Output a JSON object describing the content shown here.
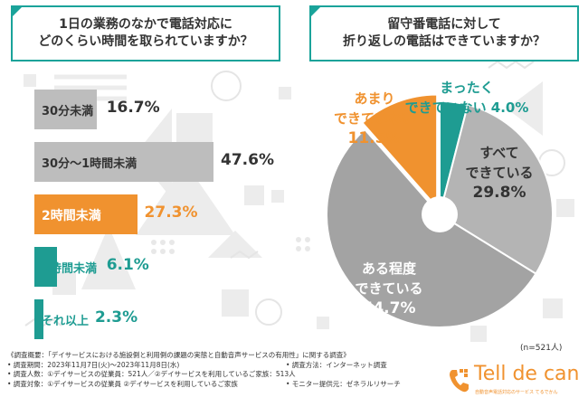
{
  "question1": {
    "line1": "1日の業務のなかで電話対応に",
    "line2": "どのくらい時間を取られていますか？"
  },
  "question2": {
    "line1": "留守番電話に対して",
    "line2": "折り返しの電話はできていますか？"
  },
  "chart_data": [
    {
      "type": "bar",
      "orientation": "horizontal",
      "categories": [
        "30分未満",
        "30分〜1時間未満",
        "2時間未満",
        "3時間未満",
        "それ以上"
      ],
      "values": [
        16.7,
        47.6,
        27.3,
        6.1,
        2.3
      ],
      "value_labels": [
        "16.7%",
        "47.6%",
        "27.3%",
        "6.1%",
        "2.3%"
      ],
      "colors": [
        "#bdbdbd",
        "#bdbdbd",
        "#f0922f",
        "#1e9c92",
        "#1e9c92"
      ],
      "title": "1日の業務のなかで電話対応にどのくらい時間を取られていますか？",
      "xlim": [
        0,
        47.6
      ]
    },
    {
      "type": "pie",
      "labels": [
        "まったくできていない",
        "すべてできている",
        "ある程度できている",
        "あまりできていない"
      ],
      "values": [
        4.0,
        29.8,
        54.7,
        11.5
      ],
      "value_labels": [
        "4.0%",
        "29.8%",
        "54.7%",
        "11.5%"
      ],
      "colors": [
        "#1e9c92",
        "#b4b4b4",
        "#a3a3a3",
        "#f0922f"
      ],
      "label_lines": [
        [
          "まったく",
          "できていない"
        ],
        [
          "すべて",
          "できている"
        ],
        [
          "ある程度",
          "できている"
        ],
        [
          "あまり",
          "できていない"
        ]
      ],
      "title": "留守番電話に対して折り返しの電話はできていますか？",
      "note": "(n=521人)"
    }
  ],
  "survey": {
    "overview": "《調査概要：「デイサービスにおける施設側と利用側の課題の実態と自動音声サービスの有用性」に関する調査》",
    "period": "• 調査期間：2023年11月7日(火)〜2023年11月8日(水)",
    "method": "• 調査方法：インターネット調査",
    "people": "• 調査人数：①デイサービスの従業員：521人／②デイサービスを利用しているご家族：513人",
    "target": "• 調査対象：①デイサービスの従業員 ②デイサービスを利用しているご家族",
    "provider": "• モニター提供元：ゼネラルリサーチ"
  },
  "logo": {
    "name": "Tell de can",
    "tagline": "自動音声電話対応のサービス てるでかん"
  },
  "colors": {
    "teal": "#1e9c92",
    "orange": "#f0922f",
    "gray": "#bdbdbd",
    "gray_dark": "#a3a3a3",
    "background_pattern": "#ececec"
  }
}
